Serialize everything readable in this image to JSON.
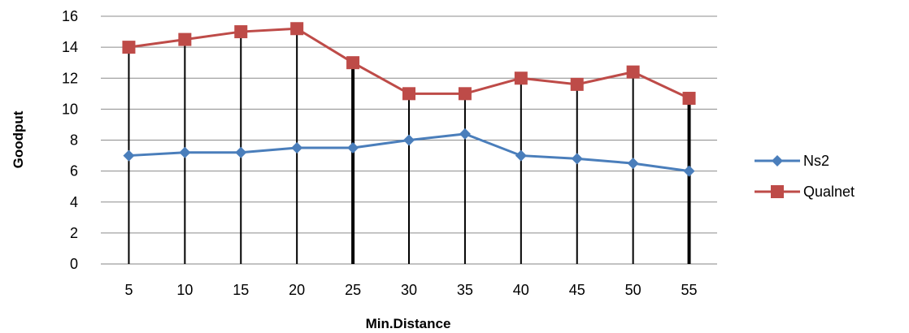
{
  "chart_data": {
    "type": "line",
    "title": "",
    "xlabel": "Min.Distance",
    "ylabel": "Goodput",
    "categories": [
      "5",
      "10",
      "15",
      "20",
      "25",
      "30",
      "35",
      "40",
      "45",
      "50",
      "55"
    ],
    "ylim": [
      0,
      16
    ],
    "yticks": [
      "0",
      "2",
      "4",
      "6",
      "8",
      "10",
      "12",
      "14",
      "16"
    ],
    "grid": true,
    "legend_position": "right",
    "series": [
      {
        "name": "Ns2",
        "color": "#4a7ebb",
        "marker": "diamond",
        "values": [
          7.0,
          7.2,
          7.2,
          7.5,
          7.5,
          8.0,
          8.4,
          7.0,
          6.8,
          6.5,
          6.0
        ]
      },
      {
        "name": "Qualnet",
        "color": "#be4b48",
        "marker": "square",
        "values": [
          14.0,
          14.5,
          15.0,
          15.2,
          13.0,
          11.0,
          11.0,
          12.0,
          11.6,
          12.4,
          10.7
        ]
      }
    ]
  }
}
